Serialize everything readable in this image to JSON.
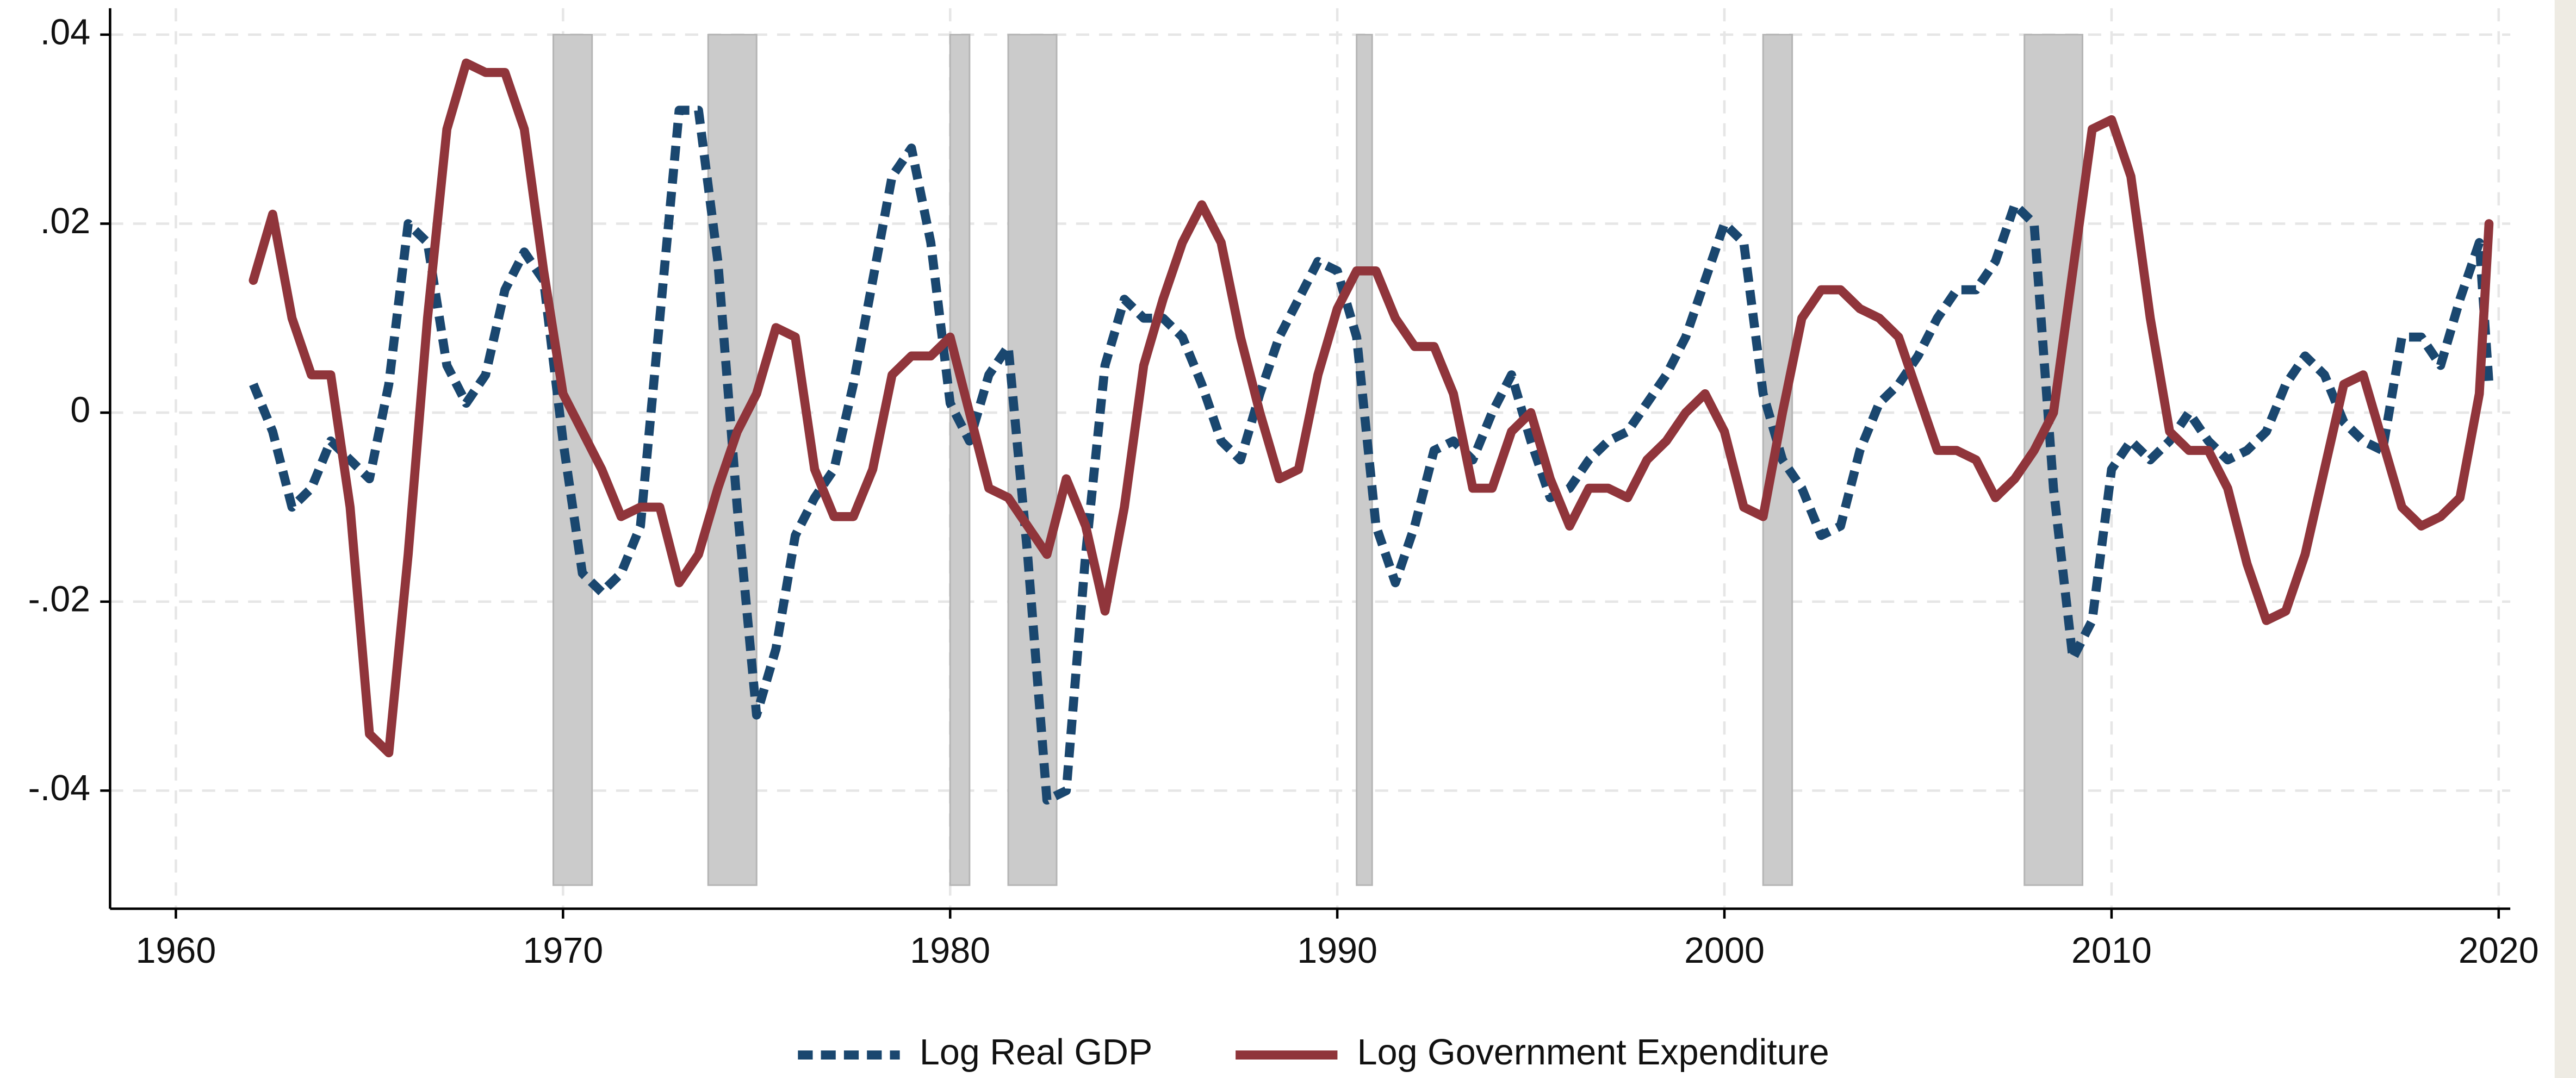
{
  "chart_data": {
    "type": "line",
    "xlim": [
      1958.3,
      2020.3
    ],
    "xticks": [
      1960,
      1970,
      1980,
      1990,
      2000,
      2010,
      2020
    ],
    "ylim": [
      -0.0525,
      0.0428
    ],
    "yticks": [
      {
        "value": -0.04,
        "label": "-.04"
      },
      {
        "value": -0.02,
        "label": "-.02"
      },
      0,
      {
        "value": 0.02,
        "label": ".02"
      },
      {
        "value": 0.04,
        "label": ".04"
      }
    ],
    "grid": true,
    "legend": "bottom",
    "recessions": [
      [
        1969.75,
        1970.75
      ],
      [
        1973.75,
        1975.0
      ],
      [
        1980.0,
        1980.5
      ],
      [
        1981.5,
        1982.75
      ],
      [
        1990.5,
        1990.9
      ],
      [
        2001.0,
        2001.75
      ],
      [
        2007.75,
        2009.25
      ]
    ],
    "shade_ylim": [
      -0.05,
      0.04
    ],
    "x": [
      1962,
      1962.5,
      1963,
      1963.5,
      1964,
      1964.5,
      1965,
      1965.5,
      1966,
      1966.5,
      1967,
      1967.5,
      1968,
      1968.5,
      1969,
      1969.5,
      1970,
      1970.5,
      1971,
      1971.5,
      1972,
      1972.5,
      1973,
      1973.5,
      1974,
      1974.5,
      1975,
      1975.5,
      1976,
      1976.5,
      1977,
      1977.5,
      1978,
      1978.5,
      1979,
      1979.5,
      1980,
      1980.5,
      1981,
      1981.5,
      1982,
      1982.5,
      1983,
      1983.5,
      1984,
      1984.5,
      1985,
      1985.5,
      1986,
      1986.5,
      1987,
      1987.5,
      1988,
      1988.5,
      1989,
      1989.5,
      1990,
      1990.5,
      1991,
      1991.5,
      1992,
      1992.5,
      1993,
      1993.5,
      1994,
      1994.5,
      1995,
      1995.5,
      1996,
      1996.5,
      1997,
      1997.5,
      1998,
      1998.5,
      1999,
      1999.5,
      2000,
      2000.5,
      2001,
      2001.5,
      2002,
      2002.5,
      2003,
      2003.5,
      2004,
      2004.5,
      2005,
      2005.5,
      2006,
      2006.5,
      2007,
      2007.5,
      2008,
      2008.5,
      2009,
      2009.5,
      2010,
      2010.5,
      2011,
      2011.5,
      2012,
      2012.5,
      2013,
      2013.5,
      2014,
      2014.5,
      2015,
      2015.5,
      2016,
      2016.5,
      2017,
      2017.5,
      2018,
      2018.5,
      2019,
      2019.5,
      2019.75
    ],
    "series": [
      {
        "name": "Log Real GDP",
        "color": "#1a476f",
        "dashed": true,
        "values": [
          0.003,
          -0.002,
          -0.01,
          -0.008,
          -0.003,
          -0.005,
          -0.007,
          0.003,
          0.02,
          0.018,
          0.005,
          0.001,
          0.004,
          0.013,
          0.017,
          0.014,
          -0.003,
          -0.017,
          -0.019,
          -0.017,
          -0.012,
          0.01,
          0.032,
          0.032,
          0.016,
          -0.01,
          -0.032,
          -0.025,
          -0.013,
          -0.009,
          -0.006,
          0.003,
          0.014,
          0.025,
          0.028,
          0.018,
          0.001,
          -0.003,
          0.004,
          0.007,
          -0.015,
          -0.041,
          -0.04,
          -0.015,
          0.005,
          0.012,
          0.01,
          0.01,
          0.008,
          0.003,
          -0.003,
          -0.005,
          0.002,
          0.008,
          0.012,
          0.016,
          0.015,
          0.008,
          -0.012,
          -0.018,
          -0.012,
          -0.004,
          -0.003,
          -0.005,
          0.0,
          0.004,
          -0.003,
          -0.009,
          -0.008,
          -0.005,
          -0.003,
          -0.002,
          0.001,
          0.004,
          0.008,
          0.014,
          0.02,
          0.018,
          0.002,
          -0.005,
          -0.008,
          -0.013,
          -0.012,
          -0.004,
          0.001,
          0.003,
          0.006,
          0.01,
          0.013,
          0.013,
          0.016,
          0.022,
          0.02,
          -0.008,
          -0.026,
          -0.022,
          -0.006,
          -0.003,
          -0.005,
          -0.003,
          0.0,
          -0.003,
          -0.005,
          -0.004,
          -0.002,
          0.003,
          0.006,
          0.004,
          -0.001,
          -0.003,
          -0.004,
          0.008,
          0.008,
          0.005,
          0.012,
          0.018,
          0.003
        ]
      },
      {
        "name": "Log Government Expenditure",
        "color": "#90353b",
        "dashed": false,
        "values": [
          0.014,
          0.021,
          0.01,
          0.004,
          0.004,
          -0.01,
          -0.034,
          -0.036,
          -0.015,
          0.01,
          0.03,
          0.037,
          0.036,
          0.036,
          0.03,
          0.015,
          0.002,
          -0.002,
          -0.006,
          -0.011,
          -0.01,
          -0.01,
          -0.018,
          -0.015,
          -0.008,
          -0.002,
          0.002,
          0.009,
          0.008,
          -0.006,
          -0.011,
          -0.011,
          -0.006,
          0.004,
          0.006,
          0.006,
          0.008,
          0.0,
          -0.008,
          -0.009,
          -0.012,
          -0.015,
          -0.007,
          -0.012,
          -0.021,
          -0.01,
          0.005,
          0.012,
          0.018,
          0.022,
          0.018,
          0.008,
          0.0,
          -0.007,
          -0.006,
          0.004,
          0.011,
          0.015,
          0.015,
          0.01,
          0.007,
          0.007,
          0.002,
          -0.008,
          -0.008,
          -0.002,
          0.0,
          -0.007,
          -0.012,
          -0.008,
          -0.008,
          -0.009,
          -0.005,
          -0.003,
          0.0,
          0.002,
          -0.002,
          -0.01,
          -0.011,
          0.0,
          0.01,
          0.013,
          0.013,
          0.011,
          0.01,
          0.008,
          0.002,
          -0.004,
          -0.004,
          -0.005,
          -0.009,
          -0.007,
          -0.004,
          0.0,
          0.015,
          0.03,
          0.031,
          0.025,
          0.01,
          -0.002,
          -0.004,
          -0.004,
          -0.008,
          -0.016,
          -0.022,
          -0.021,
          -0.015,
          -0.006,
          0.003,
          0.004,
          -0.003,
          -0.01,
          -0.012,
          -0.011,
          -0.009,
          0.002,
          0.02
        ]
      }
    ]
  }
}
